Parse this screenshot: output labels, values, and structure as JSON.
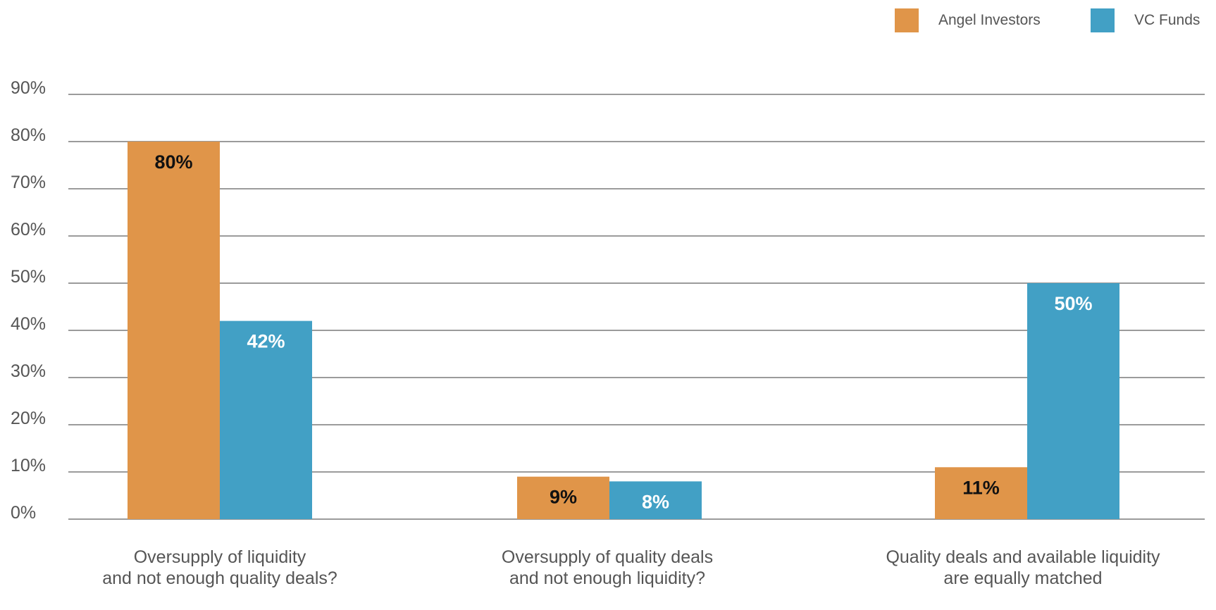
{
  "chart_data": {
    "type": "bar",
    "categories": [
      [
        "Oversupply of liquidity",
        "and not enough quality deals?"
      ],
      [
        "Oversupply of quality deals",
        "and not enough liquidity?"
      ],
      [
        "Quality deals and available liquidity",
        "are equally matched"
      ]
    ],
    "series": [
      {
        "name": "Angel Investors",
        "color": "#E09549",
        "values": [
          80,
          9,
          11
        ],
        "labels": [
          "80%",
          "9%",
          "11%"
        ],
        "label_color": "#111111"
      },
      {
        "name": "VC Funds",
        "color": "#42A0C5",
        "values": [
          42,
          8,
          50
        ],
        "labels": [
          "42%",
          "8%",
          "50%"
        ],
        "label_color": "#ffffff"
      }
    ],
    "ylim": [
      0,
      90
    ],
    "yticks": [
      0,
      10,
      20,
      30,
      40,
      50,
      60,
      70,
      80,
      90
    ],
    "ytick_labels": [
      "0%",
      "10%",
      "20%",
      "30%",
      "40%",
      "50%",
      "60%",
      "70%",
      "80%",
      "90%"
    ],
    "grid": true,
    "legend_position": "top-right",
    "title": "",
    "xlabel": "",
    "ylabel": ""
  }
}
